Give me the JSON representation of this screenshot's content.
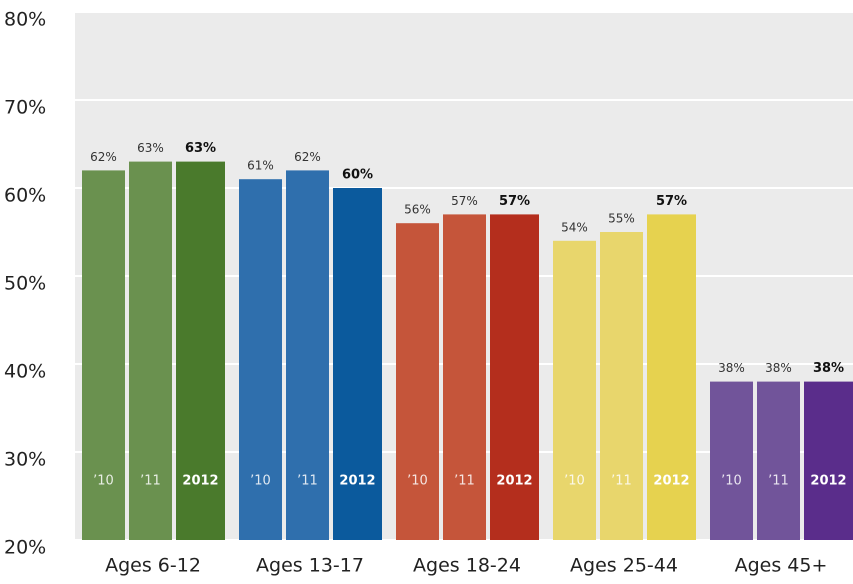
{
  "chart_data": {
    "type": "bar",
    "categories": [
      "Ages 6-12",
      "Ages 13-17",
      "Ages 18-24",
      "Ages 25-44",
      "Ages 45+"
    ],
    "series": [
      {
        "name": "’10",
        "colors": [
          "#6a914f",
          "#2f6fad",
          "#c5553a",
          "#e8d66c",
          "#71549a"
        ],
        "values": [
          62,
          61,
          56,
          54,
          38
        ],
        "value_labels": [
          "62%",
          "61%",
          "56%",
          "54%",
          "38%"
        ]
      },
      {
        "name": "’11",
        "colors": [
          "#6a914f",
          "#2f6fad",
          "#c5553a",
          "#e8d66c",
          "#71549a"
        ],
        "values": [
          63,
          62,
          57,
          55,
          38
        ],
        "value_labels": [
          "63%",
          "62%",
          "57%",
          "55%",
          "38%"
        ]
      },
      {
        "name": "2012",
        "colors": [
          "#4a7a2c",
          "#0b5a9d",
          "#b42e1d",
          "#e6d24f",
          "#5a2d8b"
        ],
        "values": [
          63,
          60,
          57,
          57,
          38
        ],
        "value_labels": [
          "63%",
          "60%",
          "57%",
          "57%",
          "38%"
        ]
      }
    ],
    "ylim": [
      20,
      80
    ],
    "yticks": [
      {
        "value": 20,
        "label": "20%"
      },
      {
        "value": 30,
        "label": "30%"
      },
      {
        "value": 40,
        "label": "40%"
      },
      {
        "value": 50,
        "label": "50%"
      },
      {
        "value": 60,
        "label": "60%"
      },
      {
        "value": 70,
        "label": "70%"
      },
      {
        "value": 80,
        "label": "80%"
      }
    ],
    "grid": true
  }
}
